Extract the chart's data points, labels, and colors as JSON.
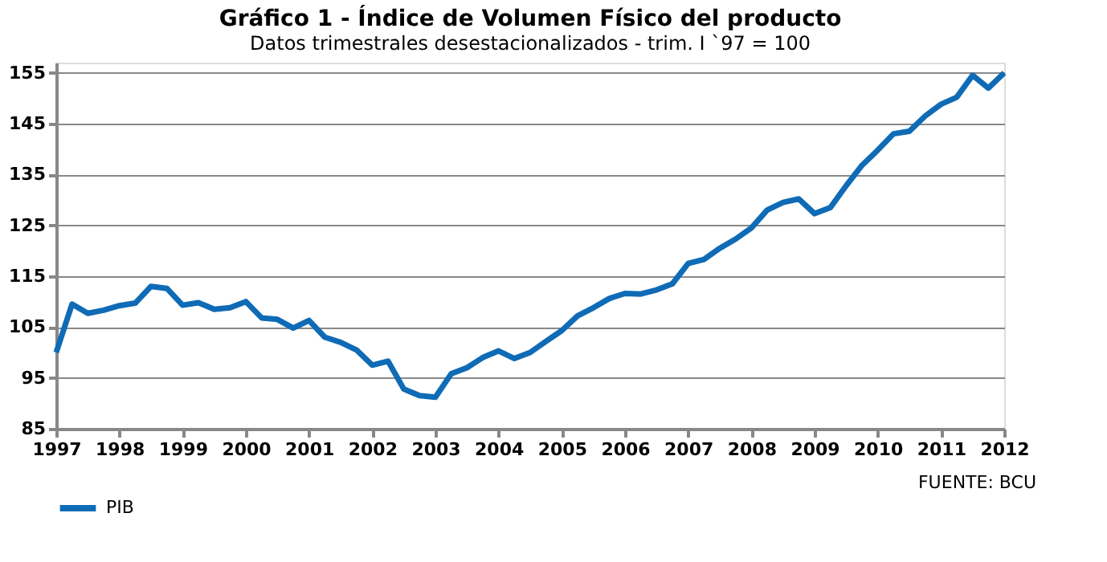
{
  "chart_data": {
    "type": "line",
    "title": "Gráfico 1 - Índice de Volumen Físico del producto",
    "subtitle": "Datos trimestrales desestacionalizados - trim. I `97 = 100",
    "x": [
      1997.0,
      1997.25,
      1997.5,
      1997.75,
      1998.0,
      1998.25,
      1998.5,
      1998.75,
      1999.0,
      1999.25,
      1999.5,
      1999.75,
      2000.0,
      2000.25,
      2000.5,
      2000.75,
      2001.0,
      2001.25,
      2001.5,
      2001.75,
      2002.0,
      2002.25,
      2002.5,
      2002.75,
      2003.0,
      2003.25,
      2003.5,
      2003.75,
      2004.0,
      2004.25,
      2004.5,
      2004.75,
      2005.0,
      2005.25,
      2005.5,
      2005.75,
      2006.0,
      2006.25,
      2006.5,
      2006.75,
      2007.0,
      2007.25,
      2007.5,
      2007.75,
      2008.0,
      2008.25,
      2008.5,
      2008.75,
      2009.0,
      2009.25,
      2009.5,
      2009.75,
      2010.0,
      2010.25,
      2010.5,
      2010.75,
      2011.0,
      2011.25,
      2011.5,
      2011.75,
      2012.0
    ],
    "series": [
      {
        "name": "PIB",
        "color": "#0f6bb5",
        "values": [
          100,
          109.5,
          107.7,
          108.3,
          109.2,
          109.7,
          113,
          112.6,
          109.3,
          109.8,
          108.5,
          108.8,
          110,
          106.8,
          106.5,
          104.8,
          106.3,
          103,
          102,
          100.5,
          97.5,
          98.3,
          92.8,
          91.5,
          91.2,
          95.8,
          97,
          99,
          100.3,
          98.8,
          100,
          102.2,
          104.3,
          107.2,
          108.8,
          110.6,
          111.6,
          111.5,
          112.3,
          113.5,
          117.5,
          118.3,
          120.5,
          122.3,
          124.5,
          128,
          129.5,
          130.2,
          127.3,
          128.5,
          132.8,
          136.8,
          139.8,
          143,
          143.5,
          146.5,
          148.8,
          150.2,
          154.5,
          152,
          155
        ]
      }
    ],
    "xlim": [
      1997,
      2012
    ],
    "xticks": [
      1997,
      1998,
      1999,
      2000,
      2001,
      2002,
      2003,
      2004,
      2005,
      2006,
      2007,
      2008,
      2009,
      2010,
      2011,
      2012
    ],
    "ylim": [
      85,
      157
    ],
    "yticks": [
      85,
      95,
      105,
      115,
      125,
      135,
      145,
      155
    ],
    "grid": "y",
    "legend": "bottom",
    "marker": "none",
    "line_style": "solid",
    "annotations": [
      "FUENTE: BCU"
    ]
  }
}
